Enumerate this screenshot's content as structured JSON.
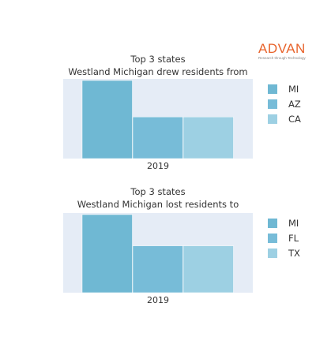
{
  "logo": {
    "text": "ADVAN",
    "tagline": "Research through Technology",
    "color": "#e8632b"
  },
  "chart_data": [
    {
      "type": "bar",
      "title": "Top 3 states",
      "subtitle": "Westland Michigan drew residents from",
      "categories": [
        "2019"
      ],
      "series": [
        {
          "name": "MI",
          "values": [
            3.0
          ],
          "color": "#6fb8d3"
        },
        {
          "name": "AZ",
          "values": [
            1.6
          ],
          "color": "#77bcd8"
        },
        {
          "name": "CA",
          "values": [
            1.6
          ],
          "color": "#9dd0e3"
        }
      ],
      "ylim": [
        0,
        3.0
      ],
      "grid": true,
      "legend": "right",
      "background": "#e5ecf6"
    },
    {
      "type": "bar",
      "title": "Top 3 states",
      "subtitle": "Westland Michigan lost residents to",
      "categories": [
        "2019"
      ],
      "series": [
        {
          "name": "MI",
          "values": [
            3.0
          ],
          "color": "#6fb8d3"
        },
        {
          "name": "FL",
          "values": [
            1.8
          ],
          "color": "#77bcd8"
        },
        {
          "name": "TX",
          "values": [
            1.8
          ],
          "color": "#9dd0e3"
        }
      ],
      "ylim": [
        0,
        3.0
      ],
      "grid": true,
      "legend": "right",
      "background": "#e5ecf6"
    }
  ]
}
